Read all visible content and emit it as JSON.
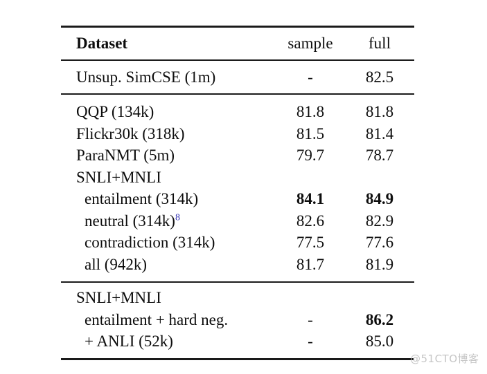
{
  "table": {
    "header": {
      "dataset": "Dataset",
      "sample": "sample",
      "full": "full"
    },
    "sections": [
      {
        "rows": [
          {
            "label": "Unsup. SimCSE (1m)",
            "sample": "-",
            "full": "82.5"
          }
        ]
      },
      {
        "rows": [
          {
            "label": "QQP (134k)",
            "sample": "81.8",
            "full": "81.8"
          },
          {
            "label": "Flickr30k (318k)",
            "sample": "81.5",
            "full": "81.4"
          },
          {
            "label": "ParaNMT (5m)",
            "sample": "79.7",
            "full": "78.7"
          },
          {
            "label": "SNLI+MNLI",
            "sample": "",
            "full": ""
          },
          {
            "label": "entailment (314k)",
            "sample": "84.1",
            "full": "84.9"
          },
          {
            "label": "neutral (314k)",
            "superscript": "8",
            "sample": "82.6",
            "full": "82.9"
          },
          {
            "label": "contradiction (314k)",
            "sample": "77.5",
            "full": "77.6"
          },
          {
            "label": "all (942k)",
            "sample": "81.7",
            "full": "81.9"
          }
        ]
      },
      {
        "rows": [
          {
            "label": "SNLI+MNLI",
            "sample": "",
            "full": ""
          },
          {
            "label": "entailment + hard neg.",
            "sample": "-",
            "full": "86.2"
          },
          {
            "label": "+ ANLI (52k)",
            "sample": "-",
            "full": "85.0"
          }
        ]
      }
    ]
  },
  "watermark": {
    "text": "@51CTO博客"
  },
  "colors": {
    "text": "#0d0d0d",
    "rule": "#1a1a1a",
    "footnote_blue": "#3232b4",
    "watermark_gray": "#c6c6c6"
  }
}
